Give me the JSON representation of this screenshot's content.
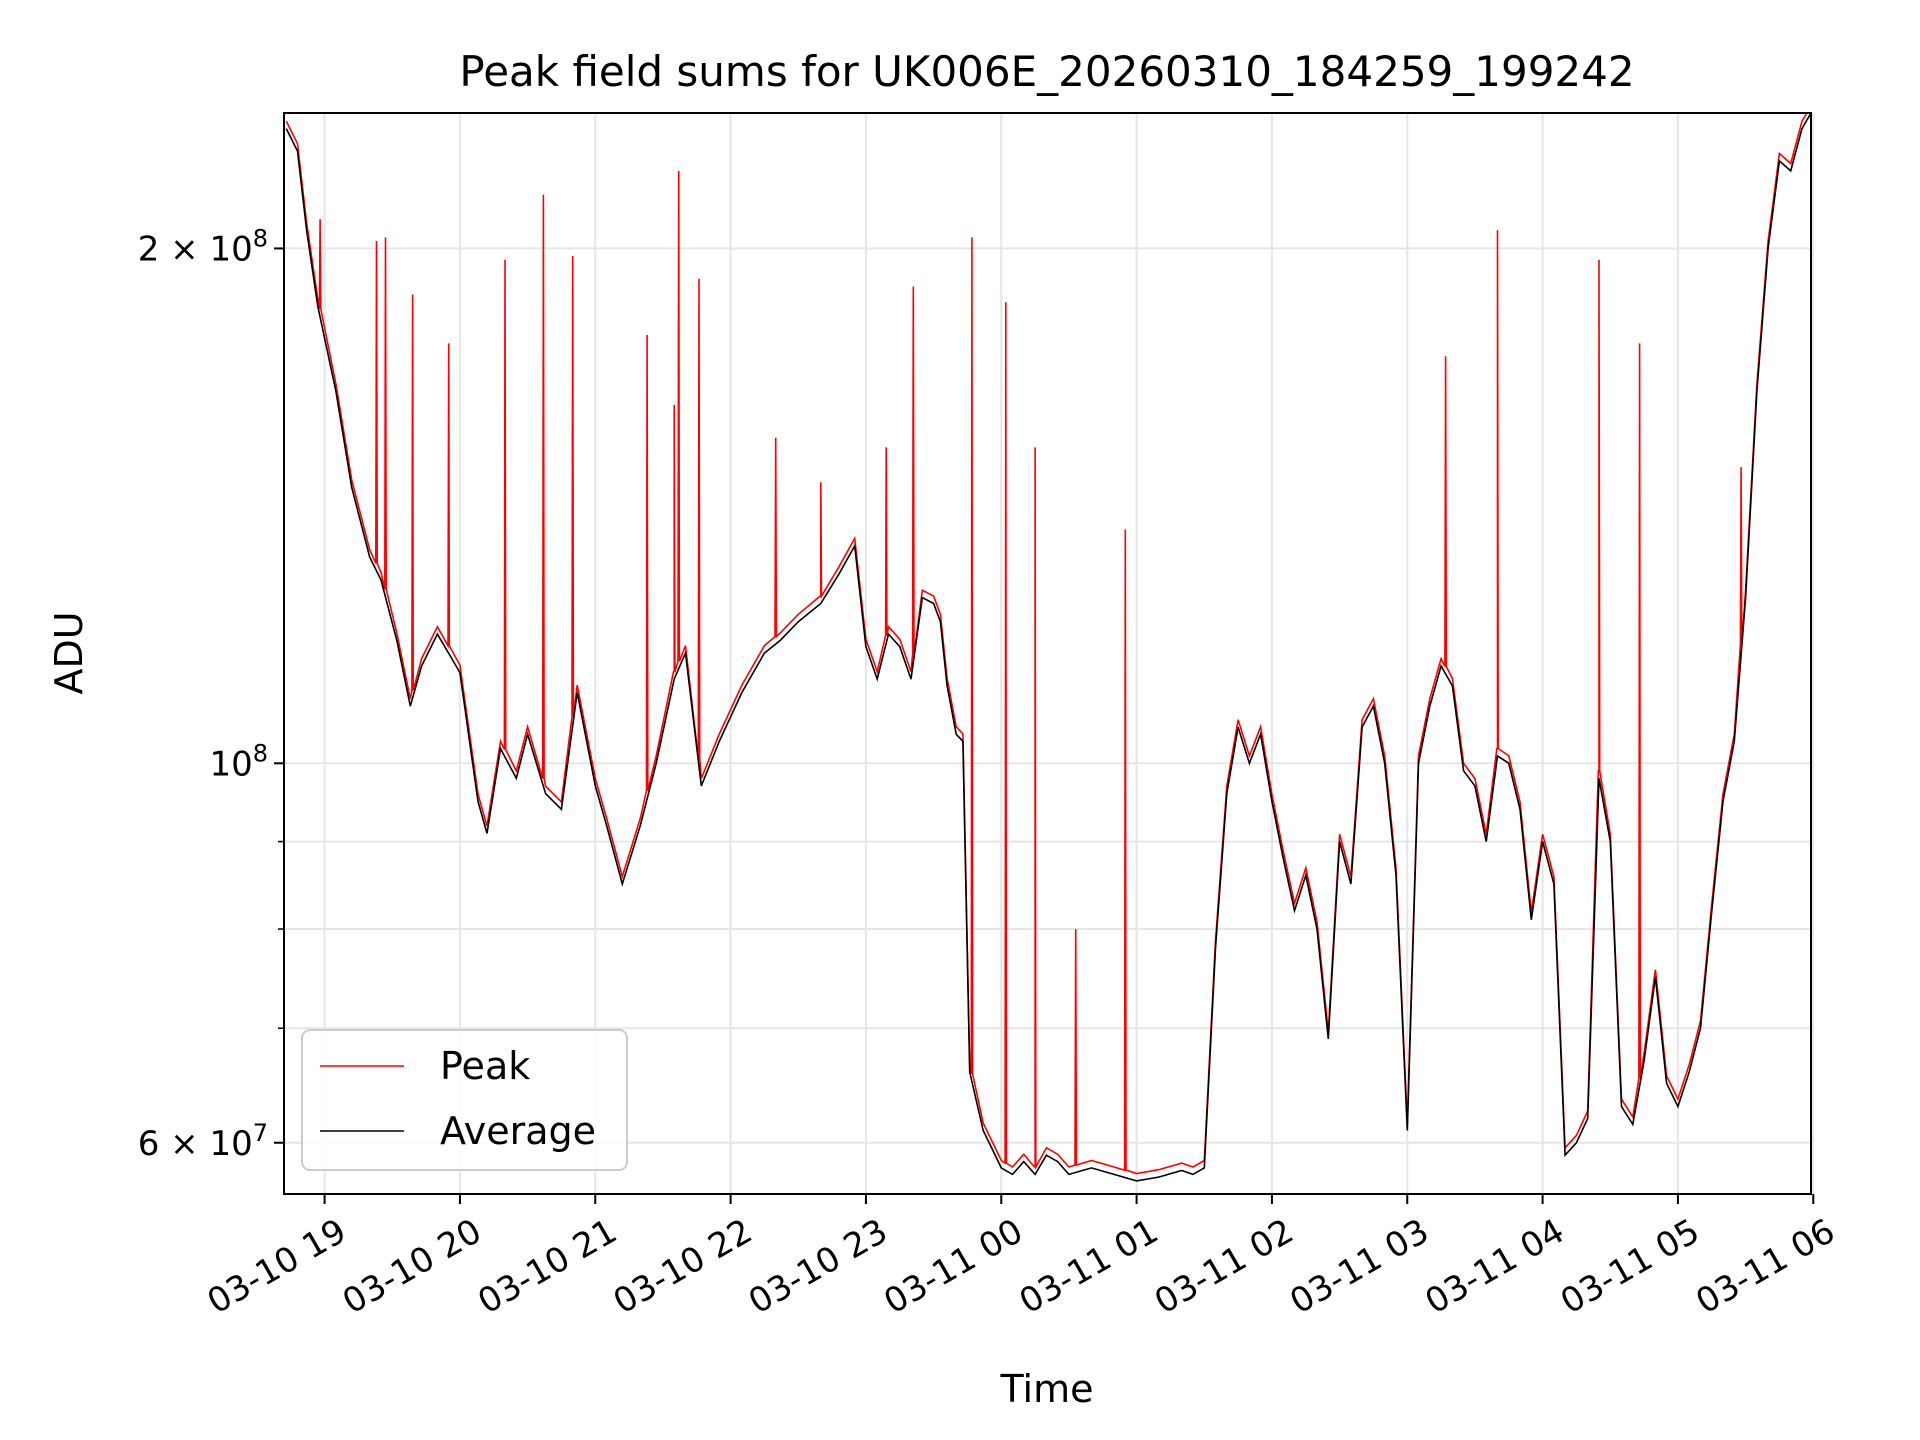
{
  "chart_data": {
    "type": "line",
    "title": "Peak field sums for UK006E_20260310_184259_199242",
    "xlabel": "Time",
    "ylabel": "ADU",
    "yscale": "log",
    "ylim": [
      56000000,
      240000000
    ],
    "xlim": [
      "03-10 18:42",
      "03-11 05:59"
    ],
    "grid": true,
    "legend_position": "lower-left",
    "x_ticks": [
      "03-10 19",
      "03-10 20",
      "03-10 21",
      "03-10 22",
      "03-10 23",
      "03-11 00",
      "03-11 01",
      "03-11 02",
      "03-11 03",
      "03-11 04",
      "03-11 05",
      "03-11 06"
    ],
    "y_ticks_major": [
      {
        "value": 200000000,
        "mantissa": "2",
        "exp": "8"
      },
      {
        "value": 100000000,
        "mantissa": "",
        "exp": "8"
      },
      {
        "value": 60000000,
        "mantissa": "6",
        "exp": "7"
      }
    ],
    "y_ticks_minor": [
      70000000,
      80000000,
      90000000
    ],
    "x": [
      "03-10 18:43",
      "03-10 18:48",
      "03-10 18:52",
      "03-10 18:57",
      "03-10 19:05",
      "03-10 19:12",
      "03-10 19:20",
      "03-10 19:25",
      "03-10 19:32",
      "03-10 19:38",
      "03-10 19:43",
      "03-10 19:50",
      "03-10 20:00",
      "03-10 20:08",
      "03-10 20:12",
      "03-10 20:18",
      "03-10 20:25",
      "03-10 20:30",
      "03-10 20:38",
      "03-10 20:45",
      "03-10 20:52",
      "03-10 21:00",
      "03-10 21:05",
      "03-10 21:12",
      "03-10 21:20",
      "03-10 21:27",
      "03-10 21:35",
      "03-10 21:40",
      "03-10 21:47",
      "03-10 21:55",
      "03-10 22:05",
      "03-10 22:15",
      "03-10 22:22",
      "03-10 22:30",
      "03-10 22:40",
      "03-10 22:48",
      "03-10 22:55",
      "03-10 23:00",
      "03-10 23:05",
      "03-10 23:10",
      "03-10 23:15",
      "03-10 23:20",
      "03-10 23:25",
      "03-10 23:30",
      "03-10 23:33",
      "03-10 23:36",
      "03-10 23:40",
      "03-10 23:43",
      "03-10 23:46",
      "03-10 23:52",
      "03-11 00:00",
      "03-11 00:05",
      "03-11 00:10",
      "03-11 00:15",
      "03-11 00:20",
      "03-11 00:25",
      "03-11 00:30",
      "03-11 00:40",
      "03-11 00:50",
      "03-11 01:00",
      "03-11 01:10",
      "03-11 01:20",
      "03-11 01:25",
      "03-11 01:30",
      "03-11 01:35",
      "03-11 01:40",
      "03-11 01:45",
      "03-11 01:50",
      "03-11 01:55",
      "03-11 02:00",
      "03-11 02:05",
      "03-11 02:10",
      "03-11 02:15",
      "03-11 02:20",
      "03-11 02:25",
      "03-11 02:30",
      "03-11 02:35",
      "03-11 02:40",
      "03-11 02:45",
      "03-11 02:50",
      "03-11 02:55",
      "03-11 03:00",
      "03-11 03:05",
      "03-11 03:10",
      "03-11 03:15",
      "03-11 03:20",
      "03-11 03:25",
      "03-11 03:30",
      "03-11 03:35",
      "03-11 03:40",
      "03-11 03:45",
      "03-11 03:50",
      "03-11 03:55",
      "03-11 04:00",
      "03-11 04:05",
      "03-11 04:10",
      "03-11 04:15",
      "03-11 04:20",
      "03-11 04:25",
      "03-11 04:30",
      "03-11 04:35",
      "03-11 04:40",
      "03-11 04:45",
      "03-11 04:50",
      "03-11 04:55",
      "03-11 05:00",
      "03-11 05:05",
      "03-11 05:10",
      "03-11 05:15",
      "03-11 05:20",
      "03-11 05:25",
      "03-11 05:30",
      "03-11 05:35",
      "03-11 05:40",
      "03-11 05:45",
      "03-11 05:50",
      "03-11 05:55",
      "03-11 05:59"
    ],
    "series": [
      {
        "name": "Average",
        "color": "#000000",
        "values": [
          235000000,
          228000000,
          205000000,
          185000000,
          165000000,
          145000000,
          132000000,
          128000000,
          118000000,
          108000000,
          114000000,
          119000000,
          113000000,
          95000000,
          91000000,
          102000000,
          98000000,
          104000000,
          96000000,
          94000000,
          110000000,
          97000000,
          92000000,
          85000000,
          92000000,
          100000000,
          112000000,
          116000000,
          97000000,
          103000000,
          110000000,
          116000000,
          118000000,
          121000000,
          124000000,
          129000000,
          134000000,
          117000000,
          112000000,
          119000000,
          117000000,
          112000000,
          125000000,
          124000000,
          121000000,
          111000000,
          104000000,
          103000000,
          66000000,
          61000000,
          58000000,
          57500000,
          58500000,
          57500000,
          59000000,
          58500000,
          57500000,
          58000000,
          57500000,
          57000000,
          57300000,
          57800000,
          57500000,
          58000000,
          78000000,
          96000000,
          105000000,
          100000000,
          104000000,
          95000000,
          88000000,
          82000000,
          86000000,
          80000000,
          69000000,
          90000000,
          85000000,
          105000000,
          108000000,
          100000000,
          86000000,
          61000000,
          100000000,
          108000000,
          114000000,
          111000000,
          99000000,
          97000000,
          90000000,
          101000000,
          100000000,
          94000000,
          81000000,
          90000000,
          85000000,
          59000000,
          60000000,
          62000000,
          98000000,
          90000000,
          63000000,
          61500000,
          67000000,
          75000000,
          65000000,
          63000000,
          66000000,
          70000000,
          82000000,
          95000000,
          103000000,
          125000000,
          165000000,
          200000000,
          225000000,
          222000000,
          235000000,
          240000000
        ]
      },
      {
        "name": "Peak",
        "color": "#ff0000",
        "spikes": [
          {
            "x": "03-10 18:58",
            "value": 208000000
          },
          {
            "x": "03-10 19:23",
            "value": 202000000
          },
          {
            "x": "03-10 19:27",
            "value": 203000000
          },
          {
            "x": "03-10 19:39",
            "value": 188000000
          },
          {
            "x": "03-10 19:55",
            "value": 176000000
          },
          {
            "x": "03-10 20:20",
            "value": 197000000
          },
          {
            "x": "03-10 20:37",
            "value": 215000000
          },
          {
            "x": "03-10 20:50",
            "value": 198000000
          },
          {
            "x": "03-10 21:23",
            "value": 178000000
          },
          {
            "x": "03-10 21:35",
            "value": 162000000
          },
          {
            "x": "03-10 21:37",
            "value": 222000000
          },
          {
            "x": "03-10 21:46",
            "value": 192000000
          },
          {
            "x": "03-10 22:20",
            "value": 155000000
          },
          {
            "x": "03-10 22:40",
            "value": 146000000
          },
          {
            "x": "03-10 23:09",
            "value": 153000000
          },
          {
            "x": "03-10 23:21",
            "value": 190000000
          },
          {
            "x": "03-10 23:47",
            "value": 203000000
          },
          {
            "x": "03-11 00:02",
            "value": 186000000
          },
          {
            "x": "03-11 00:15",
            "value": 153000000
          },
          {
            "x": "03-11 00:33",
            "value": 80000000
          },
          {
            "x": "03-11 00:55",
            "value": 137000000
          },
          {
            "x": "03-11 03:17",
            "value": 173000000
          },
          {
            "x": "03-11 03:40",
            "value": 205000000
          },
          {
            "x": "03-11 04:25",
            "value": 197000000
          },
          {
            "x": "03-11 04:43",
            "value": 176000000
          },
          {
            "x": "03-11 05:28",
            "value": 149000000
          }
        ]
      }
    ],
    "legend": [
      {
        "label": "Peak",
        "color": "#ff0000"
      },
      {
        "label": "Average",
        "color": "#000000"
      }
    ]
  }
}
